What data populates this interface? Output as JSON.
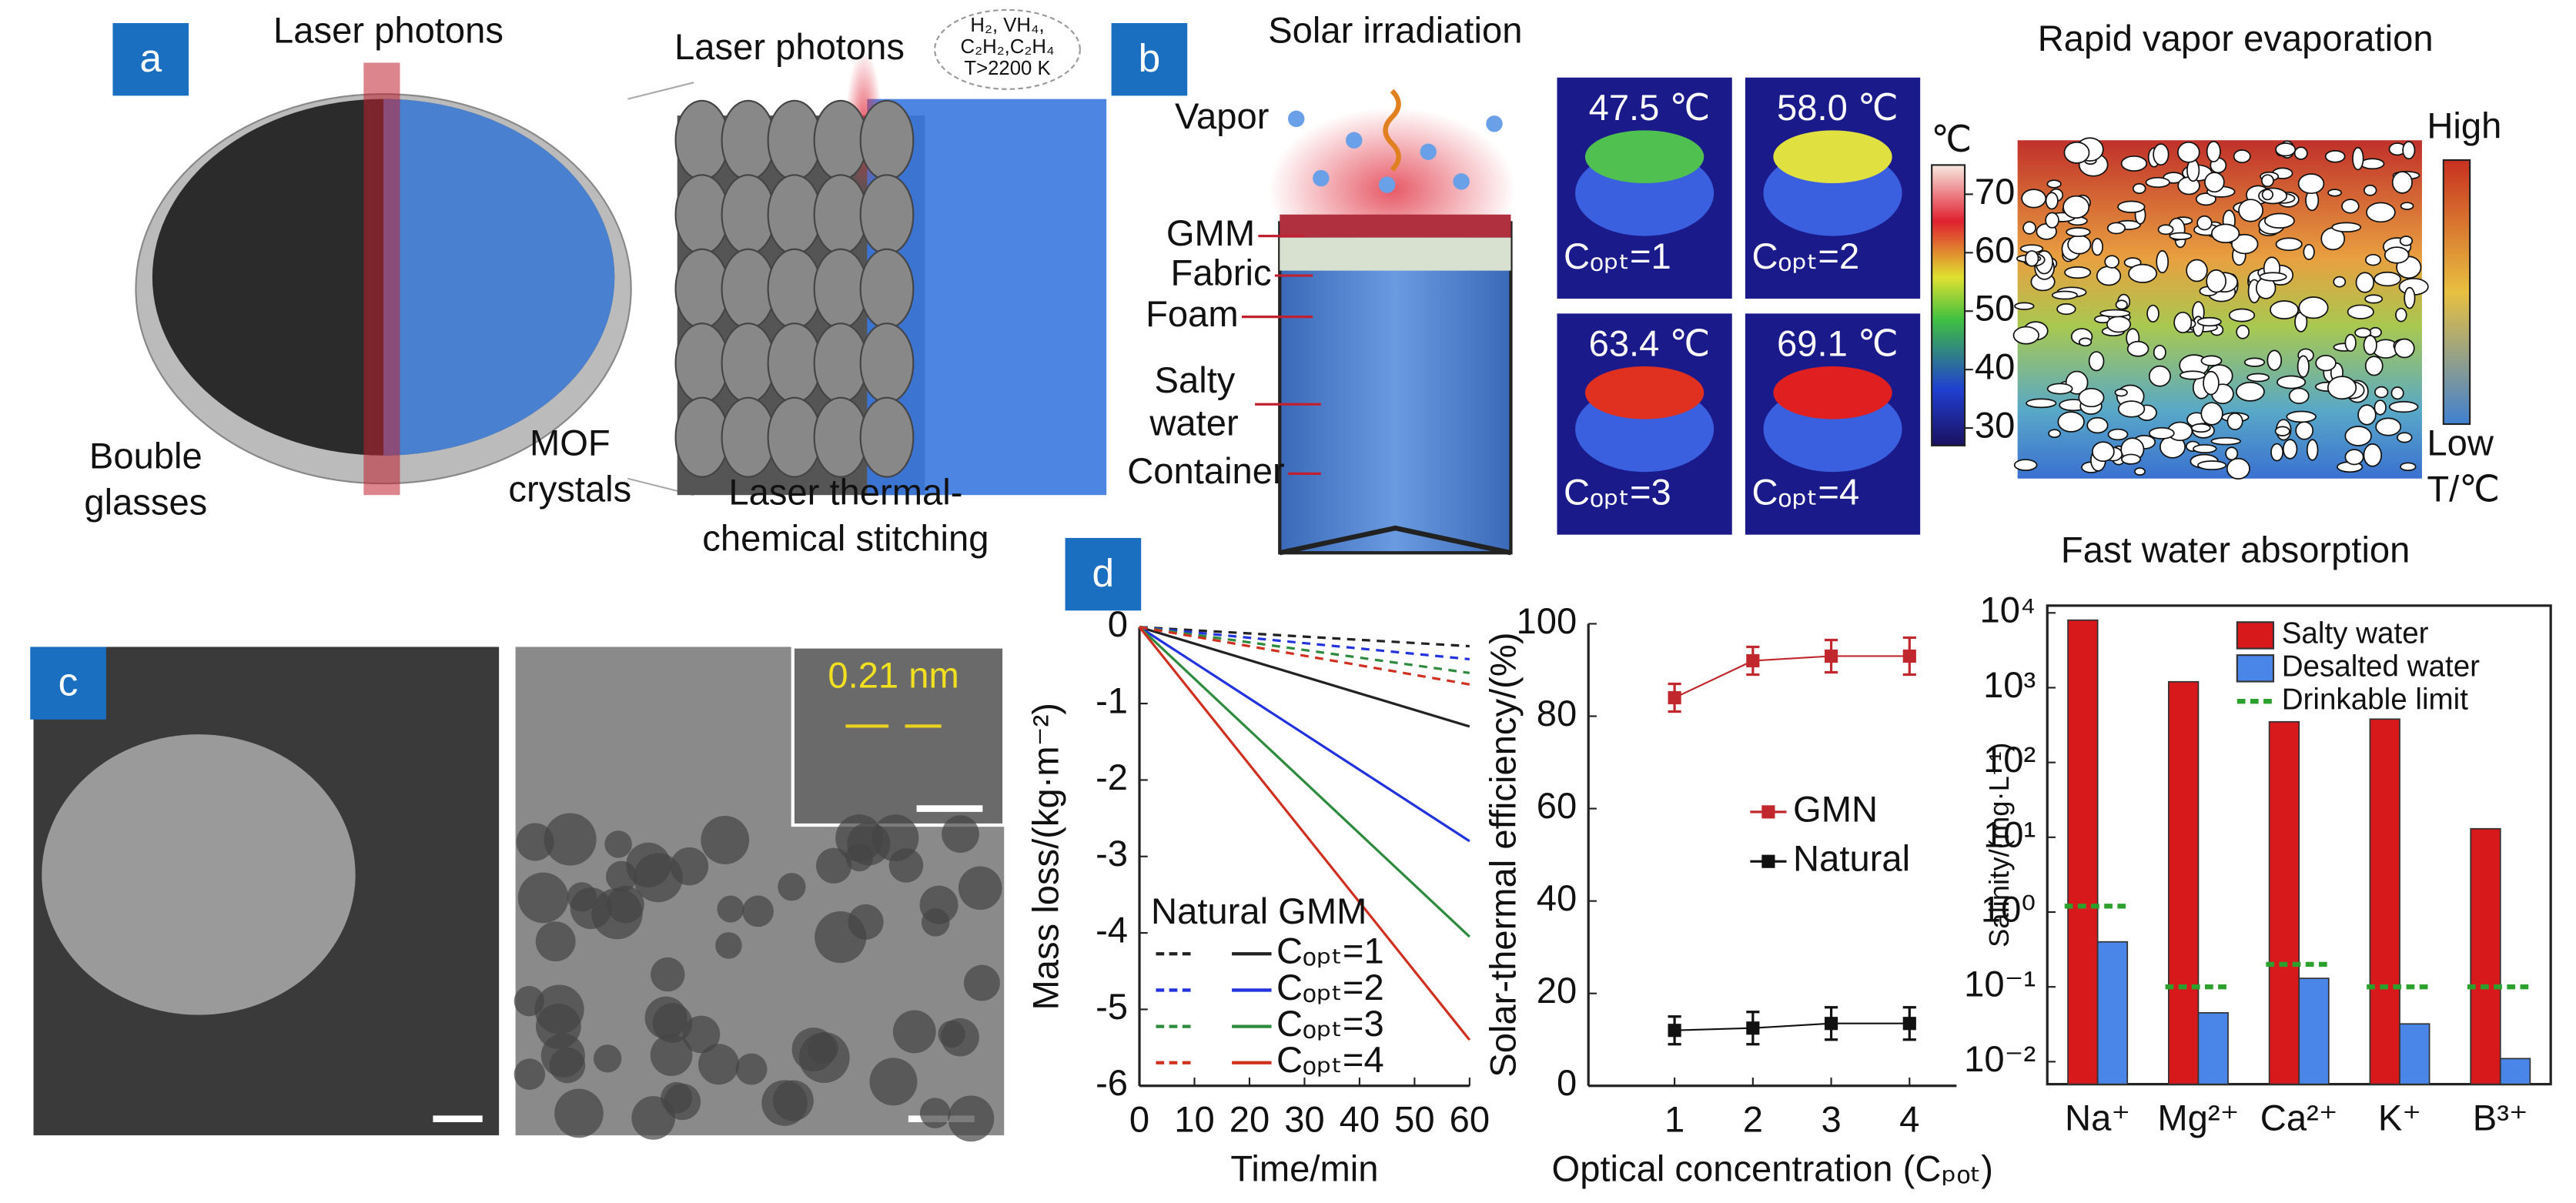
{
  "panel_a": {
    "label": "a",
    "laser_left": "Laser photons",
    "laser_right": "Laser photons",
    "gas_lines": [
      "H₂, VH₄,",
      "C₂H₂,C₂H₄",
      "T>2200 K"
    ],
    "glasses": [
      "Bouble",
      "glasses"
    ],
    "mof": [
      "MOF",
      "crystals"
    ],
    "stitching": [
      "Laser thermal-",
      "chemical stitching"
    ]
  },
  "panel_b": {
    "label": "b",
    "title": "Solar irradiation",
    "vapor": "Vapor",
    "layer_labels": [
      "GMM",
      "Fabric",
      "Foam",
      "Salty",
      "water",
      "Container"
    ]
  },
  "thermal": {
    "temps": [
      "47.5 ℃",
      "58.0 ℃",
      "63.4 ℃",
      "69.1 ℃"
    ],
    "conditions": [
      "Cₒₚₜ=1",
      "Cₒₚₜ=2",
      "Cₒₚₜ=3",
      "Cₒₚₜ=4"
    ],
    "unit": "℃",
    "colorbar_lim": [
      27,
      75
    ],
    "colorbar_ticks": [
      30,
      40,
      50,
      60,
      70
    ]
  },
  "evaporation": {
    "top": "Rapid vapor evaporation",
    "high": "High",
    "low": "Low",
    "unit": "T/℃",
    "bottom": "Fast water absorption"
  },
  "panel_c": {
    "label": "c",
    "lattice": "0.21 nm"
  },
  "panel_d": {
    "label": "d"
  },
  "chart_data": [
    {
      "type": "line",
      "x_label": "Time/min",
      "y_label": "Mass loss/(kg·m⁻²)",
      "legend_title": "Natural GMM",
      "x": [
        0,
        60
      ],
      "xlim": [
        0,
        60
      ],
      "xticks": [
        0,
        10,
        20,
        30,
        40,
        50,
        60
      ],
      "ylim": [
        -6,
        0
      ],
      "yticks": [
        -6,
        -5,
        -4,
        -3,
        -2,
        -1,
        0
      ],
      "series": [
        {
          "name": "Cₒₚₜ=1",
          "color": "#222222",
          "values": [
            0,
            -1.3
          ],
          "natural_values": [
            0,
            -0.25
          ]
        },
        {
          "name": "Cₒₚₜ=2",
          "color": "#2233dd",
          "values": [
            0,
            -2.8
          ],
          "natural_values": [
            0,
            -0.42
          ]
        },
        {
          "name": "Cₒₚₜ=3",
          "color": "#2e8b3e",
          "values": [
            0,
            -4.05
          ],
          "natural_values": [
            0,
            -0.6
          ]
        },
        {
          "name": "Cₒₚₜ=4",
          "color": "#d03020",
          "values": [
            0,
            -5.4
          ],
          "natural_values": [
            0,
            -0.75
          ]
        }
      ]
    },
    {
      "type": "scatter",
      "x_label": "Optical concentration (Cₚₒₜ)",
      "y_label": "Solar-thermal efficiency/(%)",
      "x": [
        1,
        2,
        3,
        4
      ],
      "xlim": [
        -0.1,
        4.6
      ],
      "xticks": [
        1,
        2,
        3,
        4
      ],
      "ylim": [
        0,
        100
      ],
      "yticks": [
        0,
        20,
        40,
        60,
        80,
        100
      ],
      "series": [
        {
          "name": "GMN",
          "color": "#c0282d",
          "values": [
            84,
            92,
            93,
            93
          ],
          "errors": [
            3,
            3,
            3.5,
            4
          ]
        },
        {
          "name": "Natural",
          "color": "#111111",
          "values": [
            12,
            12.5,
            13.5,
            13.5
          ],
          "errors": [
            3,
            3.5,
            3.5,
            3.5
          ]
        }
      ]
    },
    {
      "type": "bar",
      "y_label": "Salinity/(mg·L⁻¹)",
      "log_scale": true,
      "categories": [
        "Na⁺",
        "Mg²⁺",
        "Ca²⁺",
        "K⁺",
        "B³⁺"
      ],
      "ylim": [
        0.005,
        12500
      ],
      "yticks": [
        {
          "value": 0.01,
          "label": "10⁻²"
        },
        {
          "value": 0.1,
          "label": "10⁻¹"
        },
        {
          "value": 1,
          "label": "10⁰"
        },
        {
          "value": 10,
          "label": "10¹"
        },
        {
          "value": 100,
          "label": "10²"
        },
        {
          "value": 1000,
          "label": "10³"
        },
        {
          "value": 10000,
          "label": "10⁴"
        }
      ],
      "series": [
        {
          "name": "Salty water",
          "color": "#d7191c",
          "values": [
            8000,
            1200,
            350,
            380,
            13
          ]
        },
        {
          "name": "Desalted water",
          "color": "#4a86e8",
          "values": [
            0.4,
            0.045,
            0.13,
            0.032,
            0.011
          ]
        },
        {
          "name": "Drinkable limit",
          "color": "#2ca02c",
          "style": "dashed",
          "values": [
            1.2,
            0.1,
            0.2,
            0.1,
            0.1
          ]
        }
      ]
    }
  ]
}
